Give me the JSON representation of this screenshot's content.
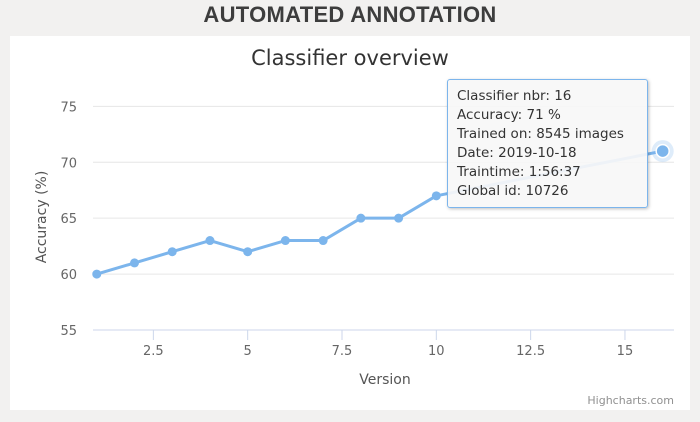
{
  "page": {
    "title": "AUTOMATED ANNOTATION"
  },
  "chart_data": {
    "type": "line",
    "title": "Classifier overview",
    "xlabel": "Version",
    "ylabel": "Accuracy (%)",
    "xlim": [
      0.9,
      16.3
    ],
    "ylim": [
      55,
      77
    ],
    "xticks": [
      2.5,
      5,
      7.5,
      10,
      12.5,
      15
    ],
    "yticks": [
      55,
      60,
      65,
      70,
      75
    ],
    "grid": {
      "y": true,
      "x": false
    },
    "legend": "none",
    "color": "#7cb5ec",
    "series": [
      {
        "x": [
          1,
          2,
          3,
          4,
          5,
          6,
          7,
          8,
          9,
          10,
          16
        ],
        "values": [
          60,
          61,
          62,
          63,
          62,
          63,
          63,
          65,
          65,
          67,
          71
        ]
      }
    ],
    "hovered_point": {
      "x": 16,
      "y": 71
    }
  },
  "tooltip": {
    "lines": [
      "Classifier nbr: 16",
      "Accuracy: 71 %",
      "Trained on: 8545 images",
      "Date: 2019-10-18",
      "Traintime: 1:56:37",
      "Global id: 10726"
    ]
  },
  "credits": "Highcharts.com"
}
